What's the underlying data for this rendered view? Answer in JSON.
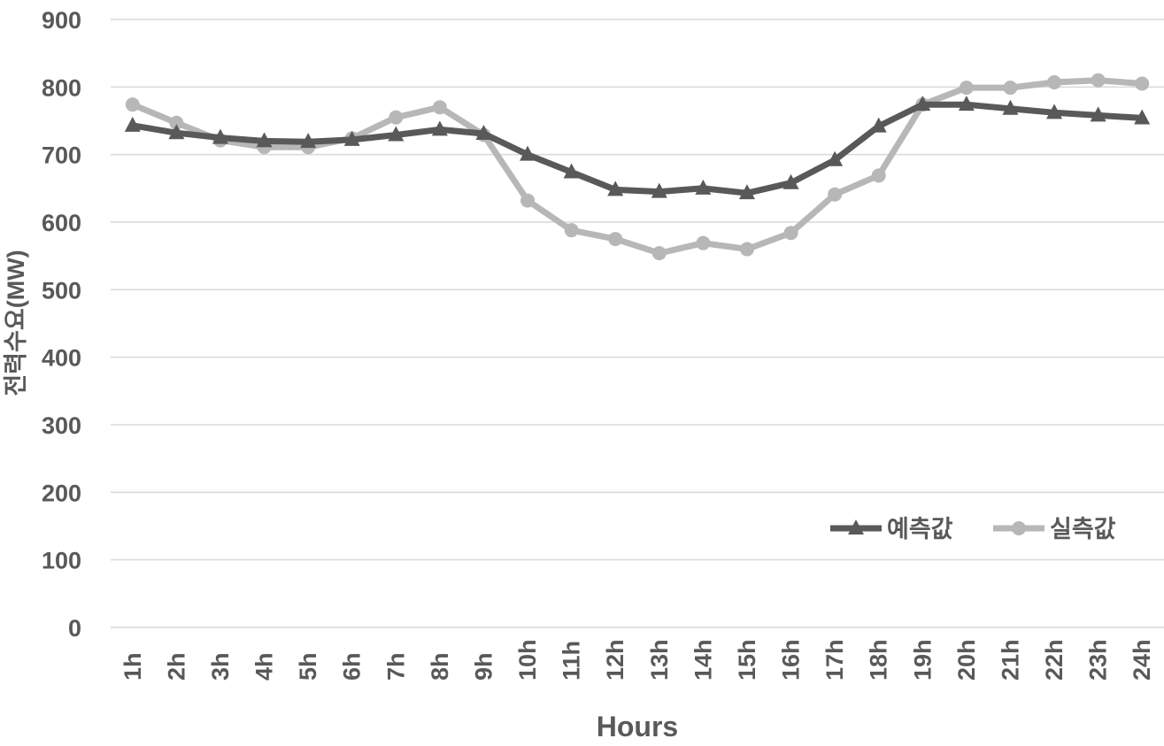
{
  "chart_data": {
    "type": "line",
    "title": "",
    "xlabel": "Hours",
    "ylabel": "전력수요(MW)",
    "ylim": [
      0,
      900
    ],
    "yticks": [
      0,
      100,
      200,
      300,
      400,
      500,
      600,
      700,
      800,
      900
    ],
    "grid": true,
    "legend_position": "bottom-right",
    "categories": [
      "1h",
      "2h",
      "3h",
      "4h",
      "5h",
      "6h",
      "7h",
      "8h",
      "9h",
      "10h",
      "11h",
      "12h",
      "13h",
      "14h",
      "15h",
      "16h",
      "17h",
      "18h",
      "19h",
      "20h",
      "21h",
      "22h",
      "23h",
      "24h"
    ],
    "series": [
      {
        "name": "예측값",
        "color": "#595959",
        "marker": "triangle",
        "values": [
          743,
          732,
          725,
          720,
          719,
          722,
          729,
          737,
          731,
          700,
          674,
          648,
          645,
          650,
          643,
          658,
          692,
          742,
          774,
          774,
          768,
          762,
          758,
          754
        ]
      },
      {
        "name": "실측값",
        "color": "#b7b7b7",
        "marker": "circle",
        "values": [
          774,
          747,
          721,
          711,
          711,
          724,
          755,
          770,
          729,
          632,
          588,
          575,
          554,
          569,
          560,
          584,
          641,
          669,
          774,
          799,
          799,
          807,
          810,
          805
        ]
      }
    ]
  }
}
